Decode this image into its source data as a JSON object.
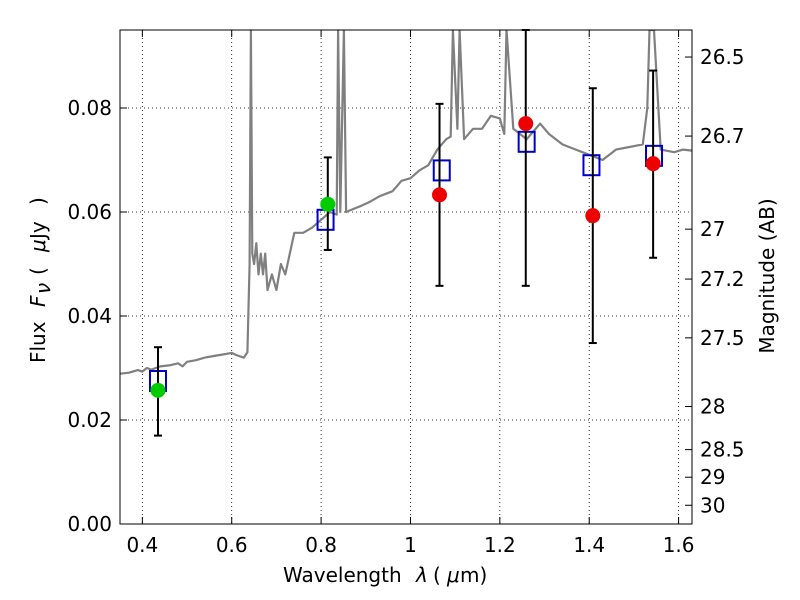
{
  "chart_data": {
    "type": "line",
    "xlabel": "Wavelength λ (μm)",
    "ylabel": "Flux F_ν (μJy)",
    "ylabel_right": "Magnitude (AB)",
    "xlim": [
      0.35,
      1.63
    ],
    "ylim": [
      0.0,
      0.095
    ],
    "grid": true,
    "x_ticks": [
      0.4,
      0.6,
      0.8,
      1.0,
      1.2,
      1.4,
      1.6
    ],
    "x_tick_labels": [
      "0.4",
      "0.6",
      "0.8",
      "1",
      "1.2",
      "1.4",
      "1.6"
    ],
    "y_ticks": [
      0.0,
      0.02,
      0.04,
      0.06,
      0.08
    ],
    "y_tick_labels": [
      "0.00",
      "0.02",
      "0.04",
      "0.06",
      "0.08"
    ],
    "right_ticks": [
      {
        "label": "26.5",
        "flux": 0.0898
      },
      {
        "label": "26.7",
        "flux": 0.0746
      },
      {
        "label": "27",
        "flux": 0.0567
      },
      {
        "label": "27.2",
        "flux": 0.0471
      },
      {
        "label": "27.5",
        "flux": 0.0358
      },
      {
        "label": "28",
        "flux": 0.0226
      },
      {
        "label": "28.5",
        "flux": 0.0143
      },
      {
        "label": "29",
        "flux": 0.009
      },
      {
        "label": "30",
        "flux": 0.0036
      }
    ],
    "series": [
      {
        "kind": "spectrum",
        "color": "#808080",
        "points": [
          [
            0.35,
            0.0289
          ],
          [
            0.37,
            0.0291
          ],
          [
            0.39,
            0.0296
          ],
          [
            0.4,
            0.0293
          ],
          [
            0.41,
            0.03
          ],
          [
            0.42,
            0.0297
          ],
          [
            0.44,
            0.0303
          ],
          [
            0.46,
            0.0305
          ],
          [
            0.48,
            0.0309
          ],
          [
            0.49,
            0.0303
          ],
          [
            0.5,
            0.0312
          ],
          [
            0.52,
            0.0315
          ],
          [
            0.54,
            0.032
          ],
          [
            0.56,
            0.0323
          ],
          [
            0.58,
            0.0326
          ],
          [
            0.6,
            0.0329
          ],
          [
            0.61,
            0.0325
          ],
          [
            0.62,
            0.0322
          ],
          [
            0.627,
            0.032
          ],
          [
            0.635,
            0.033
          ],
          [
            0.64,
            0.05
          ],
          [
            0.643,
            0.095
          ],
          [
            0.646,
            0.052
          ],
          [
            0.65,
            0.05
          ],
          [
            0.655,
            0.054
          ],
          [
            0.66,
            0.048
          ],
          [
            0.665,
            0.052
          ],
          [
            0.67,
            0.048
          ],
          [
            0.675,
            0.052
          ],
          [
            0.68,
            0.045
          ],
          [
            0.69,
            0.048
          ],
          [
            0.7,
            0.045
          ],
          [
            0.71,
            0.05
          ],
          [
            0.72,
            0.048
          ],
          [
            0.74,
            0.056
          ],
          [
            0.76,
            0.056
          ],
          [
            0.78,
            0.057
          ],
          [
            0.8,
            0.0585
          ],
          [
            0.82,
            0.06
          ],
          [
            0.835,
            0.0595
          ],
          [
            0.838,
            0.095
          ],
          [
            0.843,
            0.06
          ],
          [
            0.851,
            0.095
          ],
          [
            0.856,
            0.06
          ],
          [
            0.87,
            0.0605
          ],
          [
            0.89,
            0.0612
          ],
          [
            0.91,
            0.062
          ],
          [
            0.93,
            0.063
          ],
          [
            0.96,
            0.064
          ],
          [
            0.98,
            0.066
          ],
          [
            1.0,
            0.0665
          ],
          [
            1.02,
            0.068
          ],
          [
            1.04,
            0.069
          ],
          [
            1.06,
            0.072
          ],
          [
            1.08,
            0.074
          ],
          [
            1.09,
            0.0745
          ],
          [
            1.095,
            0.095
          ],
          [
            1.105,
            0.076
          ],
          [
            1.11,
            0.095
          ],
          [
            1.12,
            0.074
          ],
          [
            1.14,
            0.076
          ],
          [
            1.16,
            0.076
          ],
          [
            1.18,
            0.0785
          ],
          [
            1.2,
            0.078
          ],
          [
            1.21,
            0.075
          ],
          [
            1.215,
            0.095
          ],
          [
            1.23,
            0.076
          ],
          [
            1.26,
            0.074
          ],
          [
            1.29,
            0.077
          ],
          [
            1.31,
            0.075
          ],
          [
            1.34,
            0.073
          ],
          [
            1.37,
            0.072
          ],
          [
            1.4,
            0.071
          ],
          [
            1.43,
            0.07
          ],
          [
            1.46,
            0.072
          ],
          [
            1.49,
            0.0725
          ],
          [
            1.52,
            0.073
          ],
          [
            1.53,
            0.08
          ],
          [
            1.535,
            0.095
          ],
          [
            1.545,
            0.095
          ],
          [
            1.56,
            0.072
          ],
          [
            1.59,
            0.0715
          ],
          [
            1.61,
            0.072
          ],
          [
            1.63,
            0.0718
          ]
        ]
      },
      {
        "kind": "model-photometry",
        "color": "#0000cc",
        "points": [
          [
            0.435,
            0.0275
          ],
          [
            0.81,
            0.0585
          ],
          [
            1.07,
            0.068
          ],
          [
            1.26,
            0.0735
          ],
          [
            1.405,
            0.069
          ],
          [
            1.545,
            0.0708
          ]
        ]
      },
      {
        "kind": "observed",
        "color": "#00cc00",
        "points": [
          [
            0.435,
            0.0257
          ],
          [
            0.815,
            0.0615
          ]
        ],
        "errors": [
          [
            0.017,
            0.034
          ],
          [
            0.0527,
            0.0705
          ]
        ]
      },
      {
        "kind": "observed",
        "color": "#ee0000",
        "points": [
          [
            1.065,
            0.0633
          ],
          [
            1.258,
            0.077
          ],
          [
            1.408,
            0.0593
          ],
          [
            1.543,
            0.0693
          ]
        ],
        "errors": [
          [
            0.0458,
            0.0808
          ],
          [
            0.0458,
            0.096
          ],
          [
            0.0348,
            0.0838
          ],
          [
            0.0512,
            0.0872
          ]
        ]
      }
    ]
  }
}
